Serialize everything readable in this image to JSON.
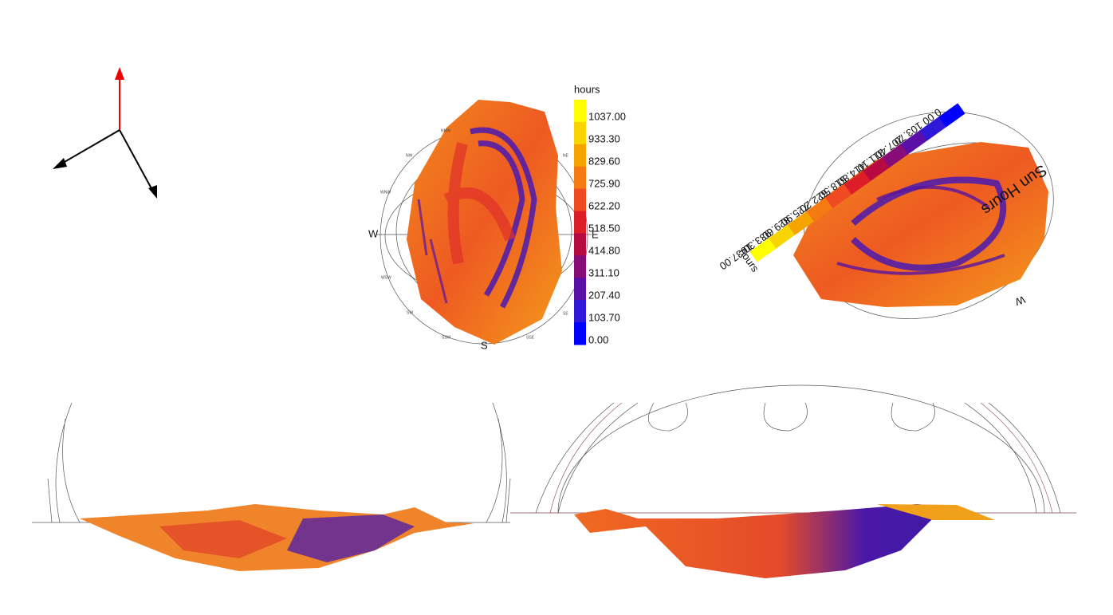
{
  "legend": {
    "title": "hours",
    "labels": [
      "1037.00",
      "933.30",
      "829.60",
      "725.90",
      "622.20",
      "518.50",
      "414.80",
      "311.10",
      "207.40",
      "103.70",
      "0.00"
    ],
    "colors": [
      "#ffff00",
      "#f8d400",
      "#f6a400",
      "#f57a12",
      "#f04a22",
      "#dc1e28",
      "#b80a42",
      "#880c78",
      "#5a10a8",
      "#3018d8",
      "#0000ff"
    ]
  },
  "compass": {
    "west": "W",
    "east": "E",
    "south": "S",
    "minor": [
      "NNW",
      "NW",
      "WNW",
      "WSW",
      "SW",
      "SSW",
      "SSE",
      "SE",
      "NE"
    ]
  },
  "rotated_view": {
    "title": "Sun Hours",
    "legend_title": "hours",
    "west": "W"
  }
}
